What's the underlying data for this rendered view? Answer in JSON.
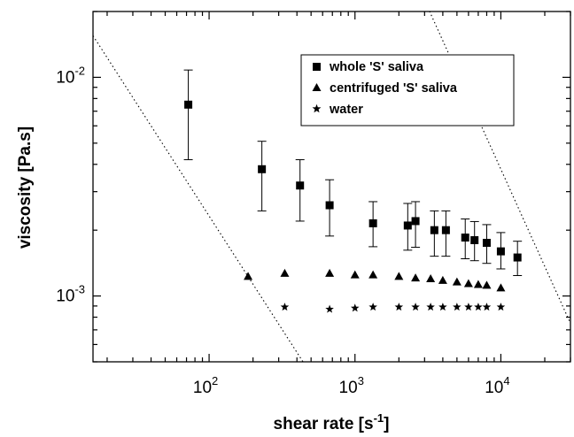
{
  "chart_data": {
    "type": "scatter",
    "x_scale": "log",
    "y_scale": "log",
    "xlim": [
      16,
      30000
    ],
    "ylim": [
      0.0005,
      0.02
    ],
    "xlabel": "shear rate [s",
    "xlabel_exp": "-1",
    "xlabel_tail": "]",
    "ylabel": "viscosity [Pa.s]",
    "x_ticks": [
      {
        "value": 100,
        "base": "10",
        "exp": "2"
      },
      {
        "value": 1000,
        "base": "10",
        "exp": "3"
      },
      {
        "value": 10000,
        "base": "10",
        "exp": "4"
      }
    ],
    "y_ticks": [
      {
        "value": 0.001,
        "base": "10",
        "exp": "-3"
      },
      {
        "value": 0.01,
        "base": "10",
        "exp": "-2"
      }
    ],
    "legend_position": "top-right",
    "grid": false,
    "series": [
      {
        "name": "whole 'S' saliva",
        "marker": "square",
        "x": [
          72,
          230,
          420,
          670,
          1330,
          2300,
          2600,
          3500,
          4200,
          5700,
          6600,
          8000,
          10000,
          13000
        ],
        "y": [
          0.0075,
          0.0038,
          0.0032,
          0.0026,
          0.00215,
          0.0021,
          0.0022,
          0.002,
          0.002,
          0.00185,
          0.0018,
          0.00175,
          0.0016,
          0.0015
        ],
        "err_low": [
          0.0042,
          0.00245,
          0.0022,
          0.00188,
          0.00168,
          0.00162,
          0.00167,
          0.00152,
          0.00152,
          0.00148,
          0.00145,
          0.00141,
          0.00133,
          0.00124
        ],
        "err_high": [
          0.0108,
          0.0051,
          0.0042,
          0.0034,
          0.0027,
          0.00265,
          0.0027,
          0.00245,
          0.00245,
          0.00225,
          0.00219,
          0.00212,
          0.00195,
          0.00178
        ]
      },
      {
        "name": "centrifuged 'S' saliva",
        "marker": "triangle",
        "x": [
          185,
          330,
          670,
          1000,
          1330,
          2000,
          2600,
          3300,
          4000,
          5000,
          6000,
          7000,
          8000,
          10000
        ],
        "y": [
          0.00123,
          0.00127,
          0.00127,
          0.00125,
          0.00125,
          0.00123,
          0.00121,
          0.0012,
          0.00118,
          0.00116,
          0.00114,
          0.00113,
          0.00112,
          0.00109
        ]
      },
      {
        "name": "water",
        "marker": "star",
        "x": [
          330,
          670,
          1000,
          1330,
          2000,
          2600,
          3300,
          4000,
          5000,
          6000,
          7000,
          8000,
          10000
        ],
        "y": [
          0.00089,
          0.00087,
          0.00088,
          0.00089,
          0.00089,
          0.00089,
          0.00089,
          0.00089,
          0.00089,
          0.00089,
          0.00089,
          0.00089,
          0.00089
        ]
      }
    ],
    "reference_lines": [
      {
        "style": "dotted",
        "points": [
          [
            16,
            0.0155
          ],
          [
            440,
            0.0005
          ]
        ]
      },
      {
        "style": "dotted",
        "points": [
          [
            3000,
            0.0225
          ],
          [
            30000,
            0.00075
          ]
        ]
      }
    ]
  }
}
